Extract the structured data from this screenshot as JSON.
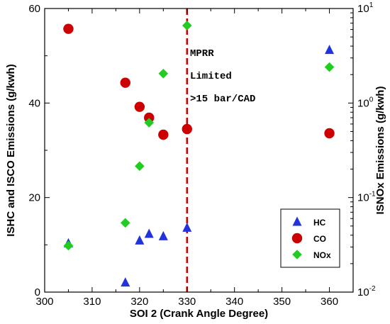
{
  "chart_data": {
    "type": "scatter",
    "xlabel": "SOI 2 (Crank Angle Degree)",
    "ylabel_left": "ISHC and ISCO Emissions (g/kwh)",
    "ylabel_right": "ISNOx Emissions (g/kwh)",
    "xlim": [
      300,
      365
    ],
    "ylim_left": [
      0,
      60
    ],
    "ylim_right": [
      0.01,
      10
    ],
    "right_axis_scale": "log",
    "x_ticks": [
      300,
      310,
      320,
      330,
      340,
      350,
      360
    ],
    "y_left_ticks": [
      0,
      20,
      40,
      60
    ],
    "y_right_ticks": [
      {
        "base": "10",
        "exp": "-2",
        "value": 0.01
      },
      {
        "base": "10",
        "exp": "-1",
        "value": 0.1
      },
      {
        "base": "10",
        "exp": "0",
        "value": 1
      },
      {
        "base": "10",
        "exp": "1",
        "value": 10
      }
    ],
    "grid": false,
    "legend_position": "bottom-right",
    "vline": {
      "x": 330,
      "color": "#cc0000",
      "style": "dashed"
    },
    "annotations": [
      "MPRR",
      "Limited",
      ">15 bar/CAD"
    ],
    "series": [
      {
        "name": "HC",
        "axis": "left",
        "marker": "triangle",
        "color": "#2233dd",
        "points": [
          [
            305,
            10.3
          ],
          [
            317,
            2.0
          ],
          [
            320,
            10.9
          ],
          [
            322,
            12.3
          ],
          [
            325,
            11.8
          ],
          [
            330,
            13.6
          ],
          [
            360,
            51.2
          ]
        ]
      },
      {
        "name": "CO",
        "axis": "left",
        "marker": "circle",
        "color": "#cc0000",
        "points": [
          [
            305,
            55.7
          ],
          [
            317,
            44.3
          ],
          [
            320,
            39.2
          ],
          [
            322,
            36.9
          ],
          [
            325,
            33.3
          ],
          [
            330,
            34.5
          ],
          [
            360,
            33.6
          ]
        ]
      },
      {
        "name": "NOx",
        "axis": "right",
        "marker": "diamond",
        "color": "#22cc22",
        "points": [
          [
            305,
            0.031
          ],
          [
            317,
            0.054
          ],
          [
            320,
            0.215
          ],
          [
            322,
            0.62
          ],
          [
            325,
            2.05
          ],
          [
            330,
            6.6
          ],
          [
            360,
            2.4
          ]
        ]
      }
    ]
  }
}
